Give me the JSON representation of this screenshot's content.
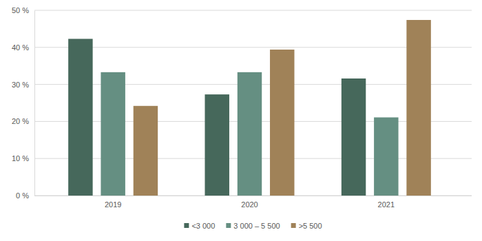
{
  "chart_data": {
    "type": "bar",
    "categories": [
      "2019",
      "2020",
      "2021"
    ],
    "series": [
      {
        "name": "<3 000",
        "color": "#46685b",
        "values": [
          42.3,
          27.3,
          31.6
        ]
      },
      {
        "name": "3 000 – 5 500",
        "color": "#658f82",
        "values": [
          33.3,
          33.3,
          21.1
        ]
      },
      {
        "name": ">5 500",
        "color": "#a08258",
        "values": [
          24.2,
          39.4,
          47.4
        ]
      }
    ],
    "ylim": [
      0,
      50
    ],
    "yticks": [
      {
        "value": 0,
        "label": "0 %"
      },
      {
        "value": 10,
        "label": "10 %"
      },
      {
        "value": 20,
        "label": "20 %"
      },
      {
        "value": 30,
        "label": "30 %"
      },
      {
        "value": 40,
        "label": "40 %"
      },
      {
        "value": 50,
        "label": "50 %"
      }
    ],
    "grid": true,
    "legend": "bottom"
  }
}
